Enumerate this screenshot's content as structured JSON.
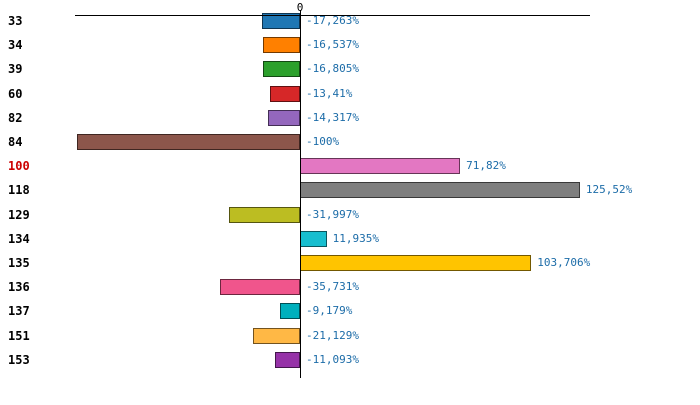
{
  "chart_data": {
    "type": "bar",
    "orientation": "horizontal",
    "title": "",
    "xlabel": "",
    "ylabel": "",
    "grid": false,
    "legend": false,
    "xlim": [
      -100,
      135
    ],
    "categories": [
      "33",
      "34",
      "39",
      "60",
      "82",
      "84",
      "100",
      "118",
      "129",
      "134",
      "135",
      "136",
      "137",
      "151",
      "153"
    ],
    "values": [
      -17.263,
      -16.537,
      -16.805,
      -13.41,
      -14.317,
      -100,
      71.82,
      125.52,
      -31.997,
      11.935,
      103.706,
      -35.731,
      -9.179,
      -21.129,
      -11.093
    ],
    "data_labels": [
      "-17,263%",
      "-16,537%",
      "-16,805%",
      "-13,41%",
      "-14,317%",
      "-100%",
      "71,82%",
      "125,52%",
      "-31,997%",
      "11,935%",
      "103,706%",
      "-35,731%",
      "-9,179%",
      "-21,129%",
      "-11,093%"
    ],
    "bar_colors": [
      "#1f77b4",
      "#ff8000",
      "#2ca02c",
      "#d62728",
      "#9467bd",
      "#8c564b",
      "#e377c2",
      "#7f7f7f",
      "#bcbd22",
      "#17becf",
      "#ffc400",
      "#f0558c",
      "#00b0bd",
      "#ffb845",
      "#9632a8"
    ],
    "highlighted_categories": [
      "100"
    ],
    "highlight_color": "#cc0000",
    "category_label_color": "#000000",
    "data_label_color": "#1c6ca8",
    "axis": {
      "zero_label": "0",
      "line_color": "#000000"
    }
  }
}
